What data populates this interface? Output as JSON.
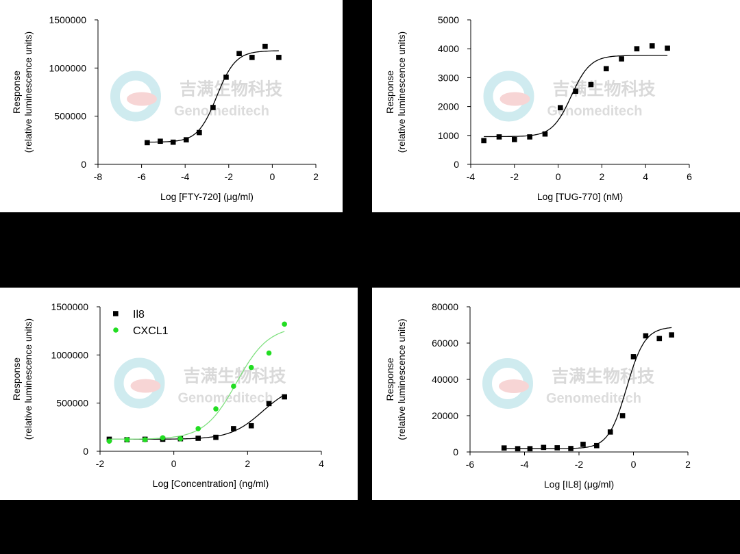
{
  "watermark": {
    "chinese": "吉满生物科技",
    "english": "Genomeditech"
  },
  "chart_data": [
    {
      "type": "scatter",
      "title": "",
      "xlabel": "Log [FTY-720] (μg/ml)",
      "ylabel": [
        "Response",
        "(relative luminescence units)"
      ],
      "xlim": [
        -8,
        2
      ],
      "ylim": [
        0,
        1500000
      ],
      "xticks": [
        -8,
        -6,
        -4,
        -2,
        0,
        2
      ],
      "yticks": [
        0,
        500000,
        1000000,
        1500000
      ],
      "series": [
        {
          "name": "FTY-720",
          "color": "#000000",
          "marker": "square",
          "x": [
            -5.74,
            -5.14,
            -4.55,
            -3.95,
            -3.35,
            -2.72,
            -2.12,
            -1.52,
            -0.93,
            -0.33,
            0.3
          ],
          "y": [
            225000,
            240000,
            230000,
            255000,
            330000,
            590000,
            905000,
            1150000,
            1110000,
            1225000,
            1110000
          ],
          "fit": {
            "bottom": 230000,
            "top": 1180000,
            "logEC50": -2.55,
            "hill": 1.0
          }
        }
      ]
    },
    {
      "type": "scatter",
      "title": "",
      "xlabel": "Log [TUG-770] (nM)",
      "ylabel": [
        "Response",
        "(relative luminescence units)"
      ],
      "xlim": [
        -4,
        6
      ],
      "ylim": [
        0,
        5000
      ],
      "xticks": [
        -4,
        -2,
        0,
        2,
        4,
        6
      ],
      "yticks": [
        0,
        1000,
        2000,
        3000,
        4000,
        5000
      ],
      "series": [
        {
          "name": "TUG-770",
          "color": "#000000",
          "marker": "square",
          "x": [
            -3.4,
            -2.7,
            -2.0,
            -1.3,
            -0.6,
            0.1,
            0.8,
            1.5,
            2.2,
            2.9,
            3.6,
            4.3,
            5.0
          ],
          "y": [
            820,
            950,
            860,
            950,
            1050,
            1960,
            2530,
            2760,
            3310,
            3650,
            4000,
            4100,
            4020
          ],
          "fit": {
            "bottom": 960,
            "top": 3770,
            "logEC50": 0.6,
            "hill": 1.0
          }
        }
      ]
    },
    {
      "type": "scatter",
      "title": "",
      "xlabel": "Log [Concentration] (ng/ml)",
      "ylabel": [
        "Response",
        "(relative luminescence units)"
      ],
      "xlim": [
        -2,
        4
      ],
      "ylim": [
        0,
        1500000
      ],
      "xticks": [
        -2,
        0,
        2,
        4
      ],
      "yticks": [
        0,
        500000,
        1000000,
        1500000
      ],
      "legend": "top-left",
      "series": [
        {
          "name": "Il8",
          "color": "#000000",
          "marker": "square",
          "x": [
            -1.75,
            -1.27,
            -0.78,
            -0.3,
            0.18,
            0.66,
            1.14,
            1.62,
            2.1,
            2.58,
            3.0
          ],
          "y": [
            125000,
            120000,
            125000,
            125000,
            130000,
            135000,
            145000,
            235000,
            265000,
            495000,
            565000
          ],
          "fit": {
            "bottom": 125000,
            "top": 700000,
            "logEC50": 2.4,
            "hill": 1.0
          }
        },
        {
          "name": "CXCL1",
          "color": "#22dd22",
          "marker": "circle",
          "x": [
            -1.75,
            -1.27,
            -0.78,
            -0.3,
            0.18,
            0.66,
            1.14,
            1.62,
            2.1,
            2.58,
            3.0
          ],
          "y": [
            105000,
            120000,
            120000,
            140000,
            130000,
            235000,
            440000,
            675000,
            870000,
            1020000,
            1320000
          ],
          "fit": {
            "bottom": 125000,
            "top": 1300000,
            "logEC50": 1.7,
            "hill": 1.0
          }
        }
      ]
    },
    {
      "type": "scatter",
      "title": "",
      "xlabel": "Log [IL8] (μg/ml)",
      "ylabel": [
        "Response",
        "(relative luminescence units)"
      ],
      "xlim": [
        -6,
        2
      ],
      "ylim": [
        0,
        80000
      ],
      "xticks": [
        -6,
        -4,
        -2,
        0,
        2
      ],
      "yticks": [
        0,
        20000,
        40000,
        60000,
        80000
      ],
      "series": [
        {
          "name": "IL8",
          "color": "#000000",
          "marker": "square",
          "x": [
            -4.75,
            -4.25,
            -3.8,
            -3.3,
            -2.8,
            -2.3,
            -1.85,
            -1.35,
            -0.85,
            -0.4,
            0.0,
            0.45,
            0.95,
            1.4
          ],
          "y": [
            2200,
            1800,
            1800,
            2500,
            2300,
            1900,
            4200,
            3500,
            11000,
            20000,
            52500,
            64000,
            62500,
            64500
          ],
          "fit": {
            "bottom": 1800,
            "top": 69000,
            "logEC50": -0.25,
            "hill": 1.3
          }
        }
      ]
    }
  ]
}
